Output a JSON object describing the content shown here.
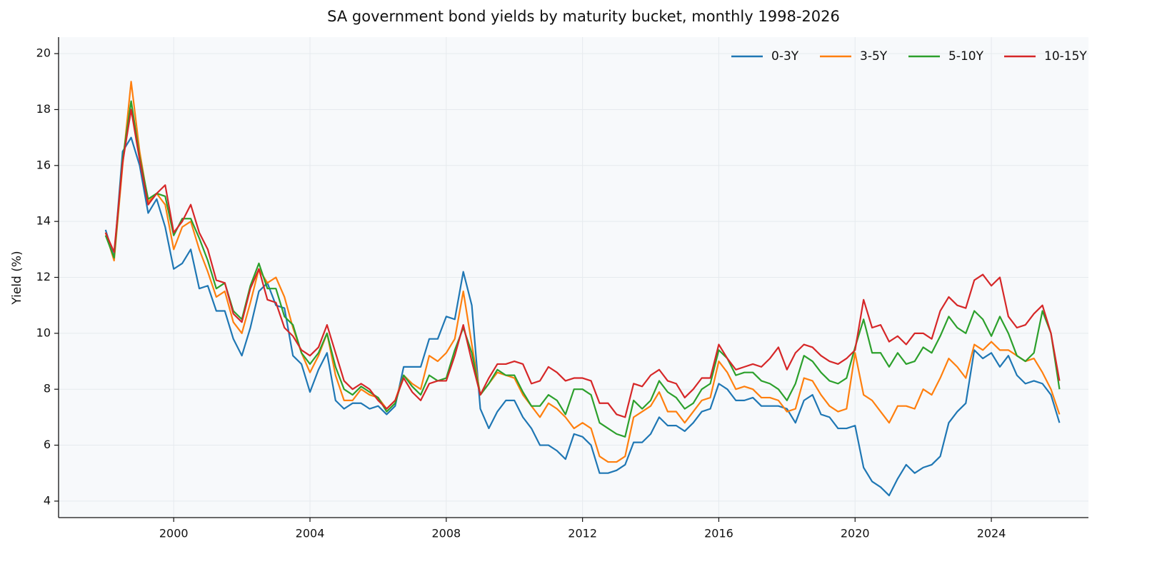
{
  "chart_data": {
    "type": "line",
    "title": "SA government bond yields by maturity bucket, monthly 1998-2026",
    "y_label": "Yield (%)",
    "xlim": [
      1996.62,
      2026.85
    ],
    "ylim": [
      3.41,
      20.59
    ],
    "xticks": [
      2000,
      2004,
      2008,
      2012,
      2016,
      2020,
      2024
    ],
    "yticks": [
      4,
      6,
      8,
      10,
      12,
      14,
      16,
      18,
      20
    ],
    "grid": true,
    "legend": "upper right",
    "x": [
      1998,
      1998.25,
      1998.5,
      1998.75,
      1999,
      1999.25,
      1999.5,
      1999.75,
      2000,
      2000.25,
      2000.5,
      2000.75,
      2001,
      2001.25,
      2001.5,
      2001.75,
      2002,
      2002.25,
      2002.5,
      2002.75,
      2003,
      2003.25,
      2003.5,
      2003.75,
      2004,
      2004.25,
      2004.5,
      2004.75,
      2005,
      2005.25,
      2005.5,
      2005.75,
      2006,
      2006.25,
      2006.5,
      2006.75,
      2007,
      2007.25,
      2007.5,
      2007.75,
      2008,
      2008.25,
      2008.5,
      2008.75,
      2009,
      2009.25,
      2009.5,
      2009.75,
      2010,
      2010.25,
      2010.5,
      2010.75,
      2011,
      2011.25,
      2011.5,
      2011.75,
      2012,
      2012.25,
      2012.5,
      2012.75,
      2013,
      2013.25,
      2013.5,
      2013.75,
      2014,
      2014.25,
      2014.5,
      2014.75,
      2015,
      2015.25,
      2015.5,
      2015.75,
      2016,
      2016.25,
      2016.5,
      2016.75,
      2017,
      2017.25,
      2017.5,
      2017.75,
      2018,
      2018.25,
      2018.5,
      2018.75,
      2019,
      2019.25,
      2019.5,
      2019.75,
      2020,
      2020.25,
      2020.5,
      2020.75,
      2021,
      2021.25,
      2021.5,
      2021.75,
      2022,
      2022.25,
      2022.5,
      2022.75,
      2023,
      2023.25,
      2023.5,
      2023.75,
      2024,
      2024.25,
      2024.5,
      2024.75,
      2025,
      2025.25,
      2025.5,
      2025.75,
      2026
    ],
    "series": [
      {
        "name": "0-3Y",
        "color": "#1f77b4",
        "values": [
          13.7,
          12.7,
          16.5,
          17.0,
          16.0,
          14.3,
          14.8,
          13.8,
          12.3,
          12.5,
          13.0,
          11.6,
          11.7,
          10.8,
          10.8,
          9.8,
          9.2,
          10.2,
          11.5,
          11.8,
          11.0,
          10.9,
          9.2,
          8.9,
          7.9,
          8.7,
          9.3,
          7.6,
          7.3,
          7.5,
          7.5,
          7.3,
          7.4,
          7.1,
          7.4,
          8.8,
          8.8,
          8.8,
          9.8,
          9.8,
          10.6,
          10.5,
          12.2,
          11.0,
          7.3,
          6.6,
          7.2,
          7.6,
          7.6,
          7.0,
          6.6,
          6.0,
          6.0,
          5.8,
          5.5,
          6.4,
          6.3,
          6.0,
          5.0,
          5.0,
          5.1,
          5.3,
          6.1,
          6.1,
          6.4,
          7.0,
          6.7,
          6.7,
          6.5,
          6.8,
          7.2,
          7.3,
          8.2,
          8.0,
          7.6,
          7.6,
          7.7,
          7.4,
          7.4,
          7.4,
          7.3,
          6.8,
          7.6,
          7.8,
          7.1,
          7.0,
          6.6,
          6.6,
          6.7,
          5.2,
          4.7,
          4.5,
          4.2,
          4.8,
          5.3,
          5.0,
          5.2,
          5.3,
          5.6,
          6.8,
          7.2,
          7.5,
          9.4,
          9.1,
          9.3,
          8.8,
          9.2,
          8.5,
          8.2,
          8.3,
          8.2,
          7.8,
          6.8
        ]
      },
      {
        "name": "3-5Y",
        "color": "#ff7f0e",
        "values": [
          13.6,
          12.6,
          16.0,
          19.0,
          16.5,
          14.7,
          15.0,
          14.6,
          13.0,
          13.8,
          14.0,
          13.0,
          12.2,
          11.3,
          11.5,
          10.4,
          10.0,
          11.1,
          12.3,
          11.8,
          12.0,
          11.3,
          10.2,
          9.3,
          8.6,
          9.2,
          10.0,
          8.5,
          7.6,
          7.6,
          8.0,
          7.8,
          7.7,
          7.3,
          7.6,
          8.5,
          8.2,
          8.0,
          9.2,
          9.0,
          9.3,
          9.8,
          11.5,
          9.6,
          7.8,
          8.2,
          8.6,
          8.5,
          8.4,
          7.8,
          7.4,
          7.0,
          7.5,
          7.3,
          7.0,
          6.6,
          6.8,
          6.6,
          5.6,
          5.4,
          5.4,
          5.6,
          7.0,
          7.2,
          7.4,
          7.9,
          7.2,
          7.2,
          6.8,
          7.2,
          7.6,
          7.7,
          9.0,
          8.6,
          8.0,
          8.1,
          8.0,
          7.7,
          7.7,
          7.6,
          7.2,
          7.3,
          8.4,
          8.3,
          7.8,
          7.4,
          7.2,
          7.3,
          9.3,
          7.8,
          7.6,
          7.2,
          6.8,
          7.4,
          7.4,
          7.3,
          8.0,
          7.8,
          8.4,
          9.1,
          8.8,
          8.4,
          9.6,
          9.4,
          9.7,
          9.4,
          9.4,
          9.2,
          9.0,
          9.1,
          8.6,
          8.0,
          7.1
        ]
      },
      {
        "name": "5-10Y",
        "color": "#2ca02c",
        "values": [
          13.5,
          12.7,
          16.2,
          18.3,
          16.3,
          14.8,
          15.0,
          14.9,
          13.5,
          14.1,
          14.1,
          13.4,
          12.6,
          11.6,
          11.8,
          10.8,
          10.5,
          11.7,
          12.5,
          11.6,
          11.6,
          10.6,
          10.3,
          9.3,
          8.9,
          9.3,
          10.0,
          8.8,
          8.0,
          7.8,
          8.1,
          7.9,
          7.7,
          7.2,
          7.5,
          8.5,
          8.1,
          7.8,
          8.5,
          8.3,
          8.4,
          9.4,
          10.2,
          9.3,
          7.8,
          8.2,
          8.7,
          8.5,
          8.5,
          7.9,
          7.4,
          7.4,
          7.8,
          7.6,
          7.1,
          8.0,
          8.0,
          7.8,
          6.8,
          6.6,
          6.4,
          6.3,
          7.6,
          7.3,
          7.6,
          8.3,
          7.9,
          7.7,
          7.3,
          7.5,
          8.0,
          8.2,
          9.4,
          9.1,
          8.5,
          8.6,
          8.6,
          8.3,
          8.2,
          8.0,
          7.6,
          8.2,
          9.2,
          9.0,
          8.6,
          8.3,
          8.2,
          8.4,
          9.5,
          10.5,
          9.3,
          9.3,
          8.8,
          9.3,
          8.9,
          9.0,
          9.5,
          9.3,
          9.9,
          10.6,
          10.2,
          10.0,
          10.8,
          10.5,
          9.9,
          10.6,
          10.0,
          9.2,
          9.0,
          9.3,
          10.8,
          10.0,
          8.0
        ]
      },
      {
        "name": "10-15Y",
        "color": "#d62728",
        "values": [
          13.6,
          12.9,
          16.1,
          18.0,
          16.2,
          14.6,
          15.0,
          15.3,
          13.6,
          14.0,
          14.6,
          13.6,
          13.0,
          11.9,
          11.8,
          10.7,
          10.4,
          11.6,
          12.3,
          11.2,
          11.1,
          10.2,
          9.9,
          9.4,
          9.2,
          9.5,
          10.3,
          9.3,
          8.3,
          8.0,
          8.2,
          8.0,
          7.6,
          7.3,
          7.6,
          8.4,
          7.9,
          7.6,
          8.2,
          8.3,
          8.3,
          9.2,
          10.3,
          9.0,
          7.8,
          8.4,
          8.9,
          8.9,
          9.0,
          8.9,
          8.2,
          8.3,
          8.8,
          8.6,
          8.3,
          8.4,
          8.4,
          8.3,
          7.5,
          7.5,
          7.1,
          7.0,
          8.2,
          8.1,
          8.5,
          8.7,
          8.3,
          8.2,
          7.7,
          8.0,
          8.4,
          8.4,
          9.6,
          9.1,
          8.7,
          8.8,
          8.9,
          8.8,
          9.1,
          9.5,
          8.7,
          9.3,
          9.6,
          9.5,
          9.2,
          9.0,
          8.9,
          9.1,
          9.4,
          11.2,
          10.2,
          10.3,
          9.7,
          9.9,
          9.6,
          10.0,
          10.0,
          9.8,
          10.8,
          11.3,
          11.0,
          10.9,
          11.9,
          12.1,
          11.7,
          12.0,
          10.6,
          10.2,
          10.3,
          10.7,
          11.0,
          10.0,
          8.3
        ]
      }
    ]
  }
}
